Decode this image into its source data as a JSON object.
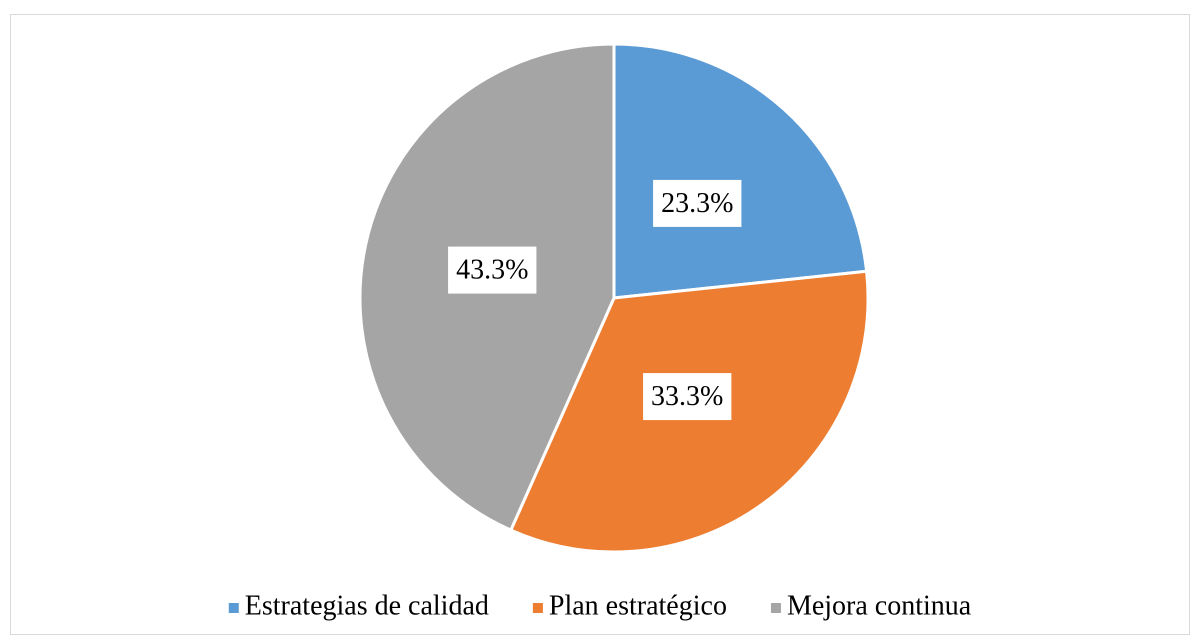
{
  "chart_data": {
    "type": "pie",
    "categories": [
      "Estrategias de calidad",
      "Plan estratégico",
      "Mejora continua"
    ],
    "values": [
      23.3,
      33.3,
      43.3
    ],
    "value_labels": [
      "23.3%",
      "33.3%",
      "43.3%"
    ],
    "colors": [
      "#5b9bd5",
      "#ed7d31",
      "#a5a5a5"
    ],
    "legend": "bottom"
  }
}
